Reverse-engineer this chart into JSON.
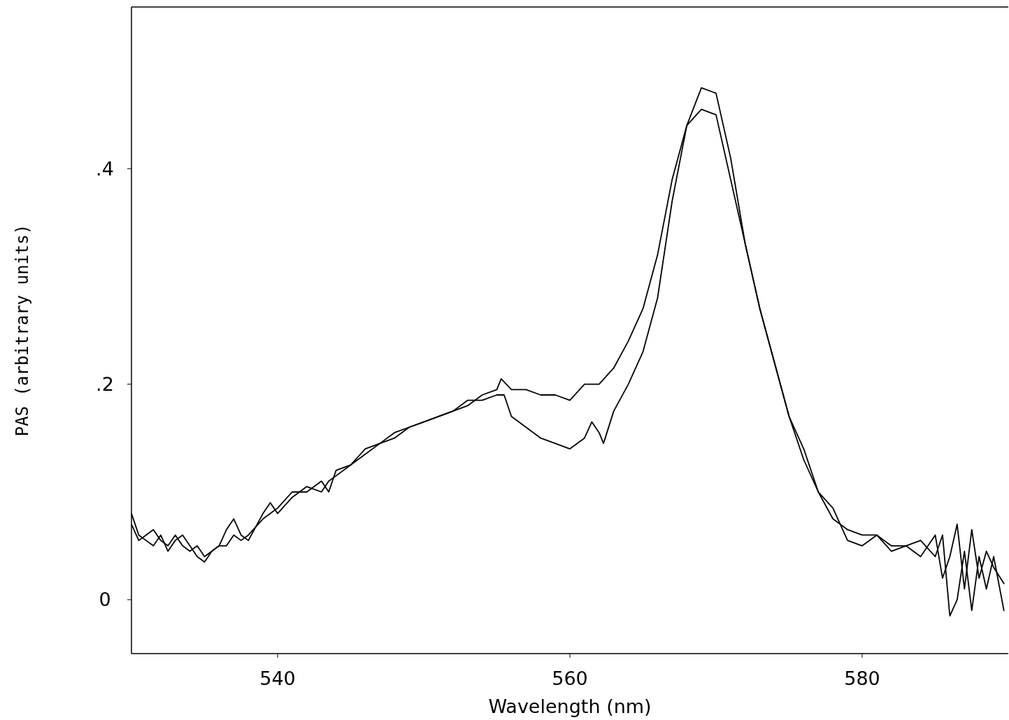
{
  "chart_data": {
    "type": "line",
    "xlabel": "Wavelength (nm)",
    "ylabel": "PAS (arbitrary units)",
    "xlim": [
      530,
      590
    ],
    "ylim": [
      -0.05,
      0.55
    ],
    "xticks": [
      540,
      560,
      580
    ],
    "yticks": [
      {
        "value": 0,
        "label": "0"
      },
      {
        "value": 0.2,
        "label": ".2"
      },
      {
        "value": 0.4,
        "label": ".4"
      }
    ],
    "grid": false,
    "marker": "none",
    "line_style": "solid",
    "series": [
      {
        "color": "#000000",
        "x": [
          530,
          530.5,
          531,
          531.5,
          532,
          532.5,
          533,
          533.5,
          534,
          534.5,
          535,
          535.5,
          536,
          536.5,
          537,
          537.5,
          538,
          539,
          539.5,
          540,
          541,
          542,
          543,
          543.5,
          544,
          545,
          546,
          547,
          548,
          549,
          550,
          551,
          552,
          553,
          554,
          555,
          555.3,
          556,
          557,
          558,
          559,
          560,
          561,
          562,
          563,
          564,
          565,
          566,
          567,
          568,
          569,
          570,
          571,
          572,
          573,
          574,
          575,
          576,
          577,
          578,
          579,
          580,
          581,
          582,
          583,
          584,
          585,
          585.5,
          586,
          586.5,
          587,
          587.5,
          588,
          588.5,
          589,
          589.7
        ],
        "values": [
          0.07,
          0.055,
          0.06,
          0.065,
          0.055,
          0.05,
          0.06,
          0.05,
          0.045,
          0.05,
          0.04,
          0.045,
          0.05,
          0.05,
          0.06,
          0.055,
          0.06,
          0.075,
          0.08,
          0.085,
          0.1,
          0.1,
          0.11,
          0.1,
          0.12,
          0.125,
          0.135,
          0.145,
          0.15,
          0.16,
          0.165,
          0.17,
          0.175,
          0.18,
          0.19,
          0.195,
          0.205,
          0.195,
          0.195,
          0.19,
          0.19,
          0.185,
          0.2,
          0.2,
          0.215,
          0.24,
          0.27,
          0.32,
          0.39,
          0.44,
          0.455,
          0.45,
          0.39,
          0.33,
          0.27,
          0.22,
          0.17,
          0.13,
          0.1,
          0.075,
          0.065,
          0.06,
          0.06,
          0.05,
          0.05,
          0.04,
          0.06,
          0.02,
          0.04,
          0.07,
          0.01,
          0.065,
          0.02,
          0.045,
          0.03,
          0.015
        ]
      },
      {
        "color": "#000000",
        "x": [
          530,
          530.5,
          531,
          531.5,
          532,
          532.5,
          533,
          533.5,
          534,
          534.5,
          535,
          535.5,
          536,
          536.5,
          537,
          537.5,
          538,
          539,
          539.5,
          540,
          541,
          542,
          543,
          543.5,
          544,
          545,
          546,
          547,
          548,
          549,
          550,
          551,
          552,
          553,
          554,
          555,
          555.5,
          556,
          557,
          558,
          559,
          560,
          561,
          561.5,
          562,
          562.3,
          563,
          564,
          565,
          566,
          567,
          568,
          569,
          570,
          571,
          572,
          573,
          574,
          575,
          576,
          577,
          578,
          579,
          580,
          581,
          582,
          583,
          584,
          585,
          585.5,
          586,
          586.5,
          587,
          587.5,
          588,
          588.5,
          589,
          589.7
        ],
        "values": [
          0.08,
          0.06,
          0.055,
          0.05,
          0.06,
          0.045,
          0.055,
          0.06,
          0.05,
          0.04,
          0.035,
          0.045,
          0.05,
          0.065,
          0.075,
          0.06,
          0.055,
          0.08,
          0.09,
          0.08,
          0.095,
          0.105,
          0.1,
          0.11,
          0.115,
          0.125,
          0.14,
          0.145,
          0.155,
          0.16,
          0.165,
          0.17,
          0.175,
          0.185,
          0.185,
          0.19,
          0.19,
          0.17,
          0.16,
          0.15,
          0.145,
          0.14,
          0.15,
          0.165,
          0.155,
          0.145,
          0.175,
          0.2,
          0.23,
          0.28,
          0.37,
          0.44,
          0.475,
          0.47,
          0.41,
          0.33,
          0.27,
          0.22,
          0.17,
          0.14,
          0.1,
          0.085,
          0.055,
          0.05,
          0.06,
          0.045,
          0.05,
          0.055,
          0.04,
          0.06,
          -0.015,
          0.0,
          0.045,
          -0.01,
          0.04,
          0.01,
          0.04,
          -0.01
        ]
      }
    ]
  }
}
